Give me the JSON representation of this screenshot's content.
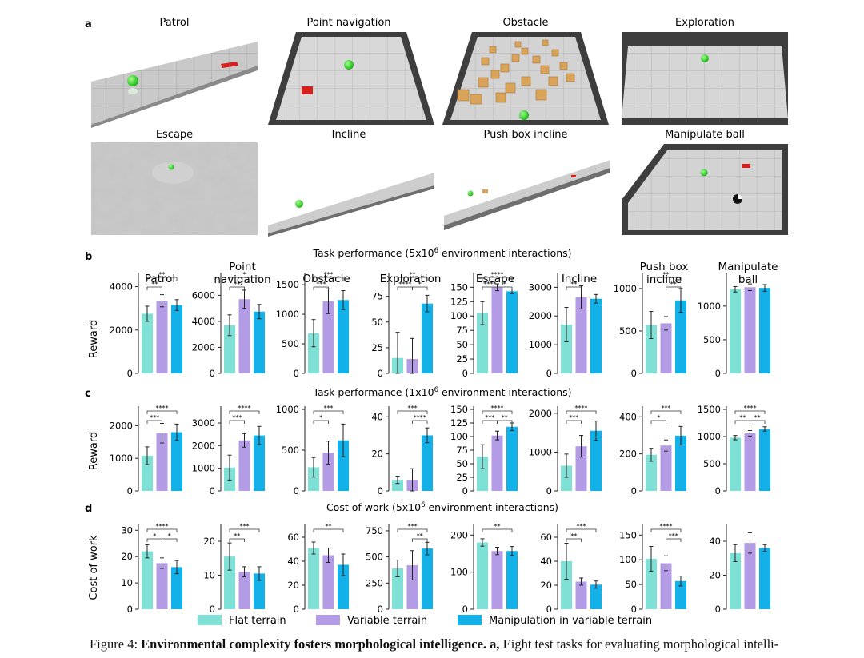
{
  "panel_a": {
    "letter": "a",
    "tasks": [
      "Patrol",
      "Point navigation",
      "Obstacle",
      "Exploration",
      "Escape",
      "Incline",
      "Push box incline",
      "Manipulate ball"
    ]
  },
  "panel_b": {
    "letter": "b",
    "title_pre": "Task performance (5x10",
    "title_exp": "6",
    "title_post": " environment interactions)"
  },
  "panel_c": {
    "letter": "c",
    "title_pre": "Task performance (1x10",
    "title_exp": "6",
    "title_post": " environment interactions)"
  },
  "panel_d": {
    "letter": "d",
    "title_pre": "Cost of work (5x10",
    "title_exp": "6",
    "title_post": " environment interactions)"
  },
  "legend": [
    "Flat terrain",
    "Variable terrain",
    "Manipulation in variable terrain"
  ],
  "colors": {
    "flat": "#7fe0d6",
    "variable": "#b49be6",
    "manip": "#14b0e8",
    "axis": "#222222"
  },
  "caption": {
    "label": "Figure 4: ",
    "bold": "Environmental complexity fosters morphological intelligence.",
    "bold2": " a,",
    "rest": " Eight test tasks for evaluating morphological intelli-"
  },
  "chart_data": [
    {
      "type": "bar",
      "title": "Task performance (5x10^6 environment interactions)",
      "ylabel": "Reward",
      "series_names": [
        "Flat terrain",
        "Variable terrain",
        "Manipulation in variable terrain"
      ],
      "subplots": [
        {
          "title": [
            "Patrol"
          ],
          "ylim": [
            0,
            4500
          ],
          "yticks": [
            0,
            2000,
            4000
          ],
          "values": [
            2750,
            3350,
            3150
          ],
          "errors": [
            350,
            280,
            250
          ],
          "sig": [
            {
              "a": 0,
              "b": 2,
              "label": "**",
              "level": 0
            },
            {
              "a": 0,
              "b": 1,
              "label": "**",
              "level": 1
            }
          ]
        },
        {
          "title": [
            "Point",
            "navigation"
          ],
          "ylim": [
            0,
            7500
          ],
          "yticks": [
            0,
            2000,
            4000,
            6000
          ],
          "values": [
            3700,
            5700,
            4750
          ],
          "errors": [
            800,
            700,
            550
          ],
          "sig": [
            {
              "a": 0,
              "b": 2,
              "label": "*",
              "level": 0
            },
            {
              "a": 0,
              "b": 1,
              "label": "**",
              "level": 1
            }
          ]
        },
        {
          "title": [
            "Obstacle"
          ],
          "ylim": [
            0,
            1650
          ],
          "yticks": [
            0,
            500,
            1000,
            1500
          ],
          "values": [
            680,
            1220,
            1240
          ],
          "errors": [
            230,
            210,
            160
          ],
          "sig": [
            {
              "a": 0,
              "b": 2,
              "label": "***",
              "level": 0
            },
            {
              "a": 0,
              "b": 1,
              "label": "***",
              "level": 1
            }
          ]
        },
        {
          "title": [
            "Exploration"
          ],
          "ylim": [
            0,
            95
          ],
          "yticks": [
            0,
            25,
            50,
            75
          ],
          "values": [
            15,
            14,
            68
          ],
          "errors": [
            25,
            20,
            8
          ],
          "sig": [
            {
              "a": 0,
              "b": 2,
              "label": "**",
              "level": 0
            },
            {
              "a": 0,
              "b": 1,
              "label": "****",
              "level": 1
            },
            {
              "a": 1,
              "b": 2,
              "label": "*",
              "level": 1
            }
          ]
        },
        {
          "title": [
            "Escape"
          ],
          "ylim": [
            0,
            170
          ],
          "yticks": [
            0,
            25,
            50,
            75,
            100,
            125,
            150
          ],
          "values": [
            105,
            150,
            143
          ],
          "errors": [
            20,
            6,
            4
          ],
          "sig": [
            {
              "a": 0,
              "b": 2,
              "label": "****",
              "level": 0
            },
            {
              "a": 0,
              "b": 1,
              "label": "****",
              "level": 1
            },
            {
              "a": 1,
              "b": 2,
              "label": "*",
              "level": 1
            }
          ]
        },
        {
          "title": [
            "Incline"
          ],
          "ylim": [
            0,
            3400
          ],
          "yticks": [
            0,
            1000,
            2000,
            3000
          ],
          "values": [
            1700,
            2650,
            2600
          ],
          "errors": [
            600,
            400,
            150
          ],
          "sig": [
            {
              "a": 0,
              "b": 1,
              "label": "**",
              "level": 1
            }
          ]
        },
        {
          "title": [
            "Push box",
            "incline"
          ],
          "ylim": [
            0,
            1150
          ],
          "yticks": [
            0,
            500,
            1000
          ],
          "values": [
            570,
            590,
            860
          ],
          "errors": [
            160,
            80,
            140
          ],
          "sig": [
            {
              "a": 0,
              "b": 2,
              "label": "**",
              "level": 0
            },
            {
              "a": 1,
              "b": 2,
              "label": "**",
              "level": 1
            }
          ]
        },
        {
          "title": [
            "Manipulate",
            "ball"
          ],
          "ylim": [
            0,
            1450
          ],
          "yticks": [
            0,
            500,
            1000
          ],
          "values": [
            1250,
            1280,
            1270
          ],
          "errors": [
            40,
            50,
            50
          ],
          "sig": []
        }
      ]
    },
    {
      "type": "bar",
      "title": "Task performance (1x10^6 environment interactions)",
      "ylabel": "Reward",
      "series_names": [
        "Flat terrain",
        "Variable terrain",
        "Manipulation in variable terrain"
      ],
      "subplots": [
        {
          "title": [],
          "ylim": [
            0,
            2500
          ],
          "yticks": [
            0,
            1000,
            2000
          ],
          "values": [
            1080,
            1770,
            1800
          ],
          "errors": [
            270,
            300,
            250
          ],
          "sig": [
            {
              "a": 0,
              "b": 2,
              "label": "****",
              "level": 0
            },
            {
              "a": 0,
              "b": 1,
              "label": "***",
              "level": 1
            }
          ]
        },
        {
          "title": [],
          "ylim": [
            0,
            3600
          ],
          "yticks": [
            0,
            1000,
            2000,
            3000
          ],
          "values": [
            1030,
            2230,
            2450
          ],
          "errors": [
            550,
            300,
            400
          ],
          "sig": [
            {
              "a": 0,
              "b": 2,
              "label": "****",
              "level": 0
            },
            {
              "a": 0,
              "b": 1,
              "label": "***",
              "level": 1
            }
          ]
        },
        {
          "title": [],
          "ylim": [
            0,
            1000
          ],
          "yticks": [
            0,
            500,
            1000
          ],
          "values": [
            290,
            470,
            620
          ],
          "errors": [
            120,
            140,
            200
          ],
          "sig": [
            {
              "a": 0,
              "b": 2,
              "label": "***",
              "level": 0
            },
            {
              "a": 0,
              "b": 1,
              "label": "*",
              "level": 1
            }
          ]
        },
        {
          "title": [],
          "ylim": [
            0,
            44
          ],
          "yticks": [
            0,
            20,
            40
          ],
          "values": [
            6,
            6,
            30
          ],
          "errors": [
            2,
            6,
            4
          ],
          "sig": [
            {
              "a": 0,
              "b": 2,
              "label": "***",
              "level": 0
            },
            {
              "a": 1,
              "b": 2,
              "label": "****",
              "level": 1
            }
          ]
        },
        {
          "title": [],
          "ylim": [
            0,
            150
          ],
          "yticks": [
            0,
            25,
            50,
            75,
            100,
            125,
            150
          ],
          "values": [
            63,
            102,
            118
          ],
          "errors": [
            22,
            8,
            7
          ],
          "sig": [
            {
              "a": 0,
              "b": 2,
              "label": "****",
              "level": 0
            },
            {
              "a": 0,
              "b": 1,
              "label": "***",
              "level": 1
            },
            {
              "a": 1,
              "b": 2,
              "label": "**",
              "level": 1
            }
          ]
        },
        {
          "title": [],
          "ylim": [
            0,
            2100
          ],
          "yticks": [
            0,
            1000,
            2000
          ],
          "values": [
            650,
            1150,
            1550
          ],
          "errors": [
            300,
            280,
            250
          ],
          "sig": [
            {
              "a": 0,
              "b": 2,
              "label": "****",
              "level": 0
            },
            {
              "a": 0,
              "b": 1,
              "label": "***",
              "level": 1
            }
          ]
        },
        {
          "title": [],
          "ylim": [
            0,
            440
          ],
          "yticks": [
            0,
            200,
            400
          ],
          "values": [
            195,
            245,
            298
          ],
          "errors": [
            35,
            30,
            50
          ],
          "sig": [
            {
              "a": 0,
              "b": 2,
              "label": "***",
              "level": 0
            },
            {
              "a": 0,
              "b": 1,
              "label": "*",
              "level": 1
            }
          ]
        },
        {
          "title": [],
          "ylim": [
            0,
            1500
          ],
          "yticks": [
            0,
            500,
            1000,
            1500
          ],
          "values": [
            980,
            1060,
            1140
          ],
          "errors": [
            40,
            50,
            40
          ],
          "sig": [
            {
              "a": 0,
              "b": 2,
              "label": "****",
              "level": 0
            },
            {
              "a": 0,
              "b": 1,
              "label": "**",
              "level": 1
            },
            {
              "a": 1,
              "b": 2,
              "label": "**",
              "level": 1
            }
          ]
        }
      ]
    },
    {
      "type": "bar",
      "title": "Cost of work (5x10^6 environment interactions)",
      "ylabel": "Cost of work",
      "series_names": [
        "Flat terrain",
        "Variable terrain",
        "Manipulation in variable terrain"
      ],
      "subplots": [
        {
          "title": [],
          "ylim": [
            0,
            31
          ],
          "yticks": [
            0,
            10,
            20,
            30
          ],
          "values": [
            22,
            17.5,
            16
          ],
          "errors": [
            2.5,
            2,
            2.5
          ],
          "sig": [
            {
              "a": 0,
              "b": 2,
              "label": "****",
              "level": 0
            },
            {
              "a": 0,
              "b": 1,
              "label": "*",
              "level": 1
            },
            {
              "a": 1,
              "b": 2,
              "label": "*",
              "level": 1
            }
          ]
        },
        {
          "title": [],
          "ylim": [
            0,
            24
          ],
          "yticks": [
            0,
            10,
            20
          ],
          "values": [
            15.5,
            11,
            10.5
          ],
          "errors": [
            4,
            1.5,
            2
          ],
          "sig": [
            {
              "a": 0,
              "b": 2,
              "label": "***",
              "level": 0
            },
            {
              "a": 0,
              "b": 1,
              "label": "**",
              "level": 1
            }
          ]
        },
        {
          "title": [],
          "ylim": [
            0,
            68
          ],
          "yticks": [
            0,
            20,
            40,
            60
          ],
          "values": [
            51,
            45,
            37
          ],
          "errors": [
            5,
            6,
            9
          ],
          "sig": [
            {
              "a": 0,
              "b": 2,
              "label": "**",
              "level": 0
            }
          ]
        },
        {
          "title": [],
          "ylim": [
            0,
            780
          ],
          "yticks": [
            0,
            250,
            500,
            750
          ],
          "values": [
            390,
            420,
            580
          ],
          "errors": [
            80,
            140,
            60
          ],
          "sig": [
            {
              "a": 0,
              "b": 2,
              "label": "***",
              "level": 0
            },
            {
              "a": 1,
              "b": 2,
              "label": "**",
              "level": 1
            }
          ]
        },
        {
          "title": [],
          "ylim": [
            0,
            220
          ],
          "yticks": [
            0,
            100,
            200
          ],
          "values": [
            180,
            157,
            157
          ],
          "errors": [
            10,
            10,
            12
          ],
          "sig": [
            {
              "a": 0,
              "b": 2,
              "label": "**",
              "level": 0
            }
          ]
        },
        {
          "title": [],
          "ylim": [
            0,
            68
          ],
          "yticks": [
            0,
            20,
            40,
            60
          ],
          "values": [
            40,
            23,
            20.5
          ],
          "errors": [
            15,
            3,
            3
          ],
          "sig": [
            {
              "a": 0,
              "b": 2,
              "label": "***",
              "level": 0
            },
            {
              "a": 0,
              "b": 1,
              "label": "**",
              "level": 1
            }
          ]
        },
        {
          "title": [],
          "ylim": [
            0,
            165
          ],
          "yticks": [
            0,
            50,
            100,
            150
          ],
          "values": [
            102,
            93,
            57
          ],
          "errors": [
            25,
            15,
            10
          ],
          "sig": [
            {
              "a": 0,
              "b": 2,
              "label": "****",
              "level": 0
            },
            {
              "a": 1,
              "b": 2,
              "label": "***",
              "level": 1
            }
          ]
        },
        {
          "title": [],
          "ylim": [
            0,
            48
          ],
          "yticks": [
            0,
            20,
            40
          ],
          "values": [
            33,
            39,
            36
          ],
          "errors": [
            5,
            6,
            2
          ],
          "sig": []
        }
      ]
    }
  ]
}
